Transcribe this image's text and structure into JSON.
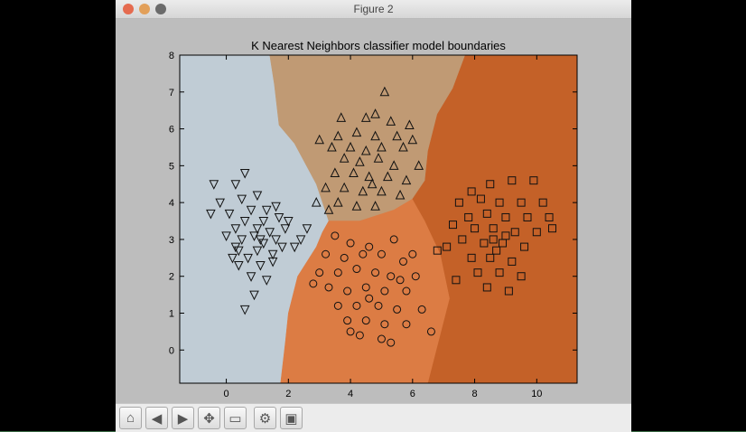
{
  "window": {
    "title": "Figure 2"
  },
  "colors": {
    "region_class0": "#c0ccd5",
    "region_class1": "#c09a74",
    "region_class2": "#dc7c44",
    "region_class3": "#c46128",
    "figure_bg": "#bdbdbd",
    "marker_stroke": "#111111"
  },
  "toolbar": {
    "buttons": [
      {
        "name": "home-button",
        "icon": "home-icon"
      },
      {
        "name": "back-button",
        "icon": "back-arrow-icon"
      },
      {
        "name": "forward-button",
        "icon": "forward-arrow-icon"
      },
      {
        "name": "pan-button",
        "icon": "move-arrows-icon"
      },
      {
        "name": "zoom-button",
        "icon": "zoom-rect-icon"
      },
      {
        "name": "subplots-button",
        "icon": "subplots-config-icon"
      },
      {
        "name": "save-button",
        "icon": "save-disk-icon"
      }
    ]
  },
  "chart_data": {
    "type": "scatter",
    "title": "K Nearest Neighbors classifier model boundaries",
    "xlabel": "",
    "ylabel": "",
    "xlim": [
      -1.5,
      11.3
    ],
    "ylim": [
      -0.9,
      8.0
    ],
    "xticks": [
      "0",
      "2",
      "4",
      "6",
      "8",
      "10"
    ],
    "xtick_values": [
      0,
      2,
      4,
      6,
      8,
      10
    ],
    "yticks": [
      "0",
      "1",
      "2",
      "3",
      "4",
      "5",
      "6",
      "7",
      "8"
    ],
    "ytick_values": [
      0,
      1,
      2,
      3,
      4,
      5,
      6,
      7,
      8
    ],
    "grid": false,
    "legend": false,
    "regions": [
      {
        "class": 0,
        "polygon": [
          [
            -1.5,
            8.0
          ],
          [
            1.4,
            8.0
          ],
          [
            1.55,
            7.2
          ],
          [
            1.7,
            6.1
          ],
          [
            2.2,
            5.6
          ],
          [
            2.9,
            4.5
          ],
          [
            3.3,
            3.5
          ],
          [
            3.1,
            3.2
          ],
          [
            2.9,
            2.8
          ],
          [
            2.3,
            2.0
          ],
          [
            2.0,
            1.0
          ],
          [
            1.9,
            0.2
          ],
          [
            1.75,
            -0.9
          ],
          [
            -1.5,
            -0.9
          ]
        ]
      },
      {
        "class": 1,
        "polygon": [
          [
            1.4,
            8.0
          ],
          [
            7.7,
            8.0
          ],
          [
            7.3,
            7.1
          ],
          [
            6.8,
            6.4
          ],
          [
            6.5,
            5.4
          ],
          [
            6.4,
            4.6
          ],
          [
            6.0,
            4.1
          ],
          [
            5.4,
            3.8
          ],
          [
            4.3,
            3.5
          ],
          [
            3.3,
            3.5
          ],
          [
            2.9,
            4.5
          ],
          [
            2.2,
            5.6
          ],
          [
            1.7,
            6.1
          ],
          [
            1.55,
            7.2
          ]
        ]
      },
      {
        "class": 2,
        "polygon": [
          [
            3.3,
            3.5
          ],
          [
            4.3,
            3.5
          ],
          [
            5.4,
            3.8
          ],
          [
            6.0,
            4.1
          ],
          [
            6.4,
            3.5
          ],
          [
            6.9,
            2.6
          ],
          [
            7.2,
            1.4
          ],
          [
            6.5,
            -0.9
          ],
          [
            1.75,
            -0.9
          ],
          [
            1.9,
            0.2
          ],
          [
            2.0,
            1.0
          ],
          [
            2.3,
            2.0
          ],
          [
            2.9,
            2.8
          ],
          [
            3.1,
            3.2
          ]
        ]
      },
      {
        "class": 3,
        "polygon": [
          [
            7.7,
            8.0
          ],
          [
            11.3,
            8.0
          ],
          [
            11.3,
            -0.9
          ],
          [
            6.5,
            -0.9
          ],
          [
            7.2,
            1.4
          ],
          [
            6.9,
            2.6
          ],
          [
            6.4,
            3.5
          ],
          [
            6.0,
            4.1
          ],
          [
            6.4,
            4.6
          ],
          [
            6.5,
            5.4
          ],
          [
            6.8,
            6.4
          ],
          [
            7.3,
            7.1
          ]
        ]
      }
    ],
    "series": [
      {
        "marker": "triangle-down",
        "points": [
          [
            0.6,
            1.1
          ],
          [
            0.9,
            1.5
          ],
          [
            1.3,
            1.9
          ],
          [
            0.8,
            2.0
          ],
          [
            0.4,
            2.3
          ],
          [
            1.1,
            2.3
          ],
          [
            0.2,
            2.5
          ],
          [
            0.7,
            2.5
          ],
          [
            1.5,
            2.4
          ],
          [
            1.0,
            2.7
          ],
          [
            0.3,
            2.8
          ],
          [
            1.8,
            2.8
          ],
          [
            2.2,
            2.8
          ],
          [
            0.5,
            3.0
          ],
          [
            1.2,
            2.9
          ],
          [
            1.6,
            3.0
          ],
          [
            0.0,
            3.1
          ],
          [
            0.9,
            3.1
          ],
          [
            2.4,
            3.0
          ],
          [
            0.3,
            3.3
          ],
          [
            1.0,
            3.3
          ],
          [
            1.4,
            3.2
          ],
          [
            1.9,
            3.3
          ],
          [
            2.6,
            3.3
          ],
          [
            0.6,
            3.5
          ],
          [
            1.2,
            3.5
          ],
          [
            1.7,
            3.6
          ],
          [
            0.1,
            3.7
          ],
          [
            0.8,
            3.8
          ],
          [
            1.3,
            3.8
          ],
          [
            -0.5,
            3.7
          ],
          [
            -0.2,
            4.0
          ],
          [
            0.5,
            4.1
          ],
          [
            1.0,
            4.2
          ],
          [
            0.3,
            4.5
          ],
          [
            -0.4,
            4.5
          ],
          [
            0.6,
            4.8
          ],
          [
            1.6,
            3.9
          ],
          [
            2.0,
            3.5
          ],
          [
            1.1,
            3.0
          ],
          [
            0.4,
            2.7
          ],
          [
            1.5,
            2.6
          ]
        ]
      },
      {
        "marker": "triangle-up",
        "points": [
          [
            5.1,
            7.0
          ],
          [
            4.5,
            6.3
          ],
          [
            3.7,
            6.3
          ],
          [
            4.8,
            6.4
          ],
          [
            5.3,
            6.2
          ],
          [
            5.9,
            6.1
          ],
          [
            3.0,
            5.7
          ],
          [
            3.6,
            5.8
          ],
          [
            4.2,
            5.9
          ],
          [
            4.8,
            5.8
          ],
          [
            5.5,
            5.8
          ],
          [
            6.0,
            5.7
          ],
          [
            3.4,
            5.5
          ],
          [
            4.0,
            5.5
          ],
          [
            4.5,
            5.4
          ],
          [
            5.0,
            5.5
          ],
          [
            5.7,
            5.5
          ],
          [
            3.8,
            5.2
          ],
          [
            4.3,
            5.1
          ],
          [
            4.9,
            5.2
          ],
          [
            5.4,
            5.0
          ],
          [
            6.2,
            5.0
          ],
          [
            3.5,
            4.8
          ],
          [
            4.1,
            4.8
          ],
          [
            4.6,
            4.7
          ],
          [
            5.2,
            4.7
          ],
          [
            5.8,
            4.6
          ],
          [
            3.2,
            4.4
          ],
          [
            3.8,
            4.4
          ],
          [
            4.4,
            4.3
          ],
          [
            5.0,
            4.3
          ],
          [
            5.6,
            4.2
          ],
          [
            2.9,
            4.0
          ],
          [
            3.6,
            4.0
          ],
          [
            4.2,
            3.9
          ],
          [
            4.8,
            3.9
          ],
          [
            3.3,
            3.8
          ],
          [
            4.7,
            4.5
          ]
        ]
      },
      {
        "marker": "circle",
        "points": [
          [
            3.5,
            3.1
          ],
          [
            4.0,
            2.9
          ],
          [
            4.6,
            2.8
          ],
          [
            5.4,
            3.0
          ],
          [
            3.2,
            2.6
          ],
          [
            3.8,
            2.5
          ],
          [
            4.4,
            2.6
          ],
          [
            5.0,
            2.6
          ],
          [
            5.7,
            2.4
          ],
          [
            3.0,
            2.1
          ],
          [
            3.6,
            2.1
          ],
          [
            4.2,
            2.2
          ],
          [
            4.8,
            2.1
          ],
          [
            5.3,
            2.0
          ],
          [
            6.1,
            2.0
          ],
          [
            3.3,
            1.7
          ],
          [
            3.9,
            1.6
          ],
          [
            4.5,
            1.7
          ],
          [
            5.1,
            1.6
          ],
          [
            5.8,
            1.6
          ],
          [
            3.6,
            1.2
          ],
          [
            4.2,
            1.2
          ],
          [
            4.9,
            1.2
          ],
          [
            5.5,
            1.1
          ],
          [
            6.3,
            1.1
          ],
          [
            3.9,
            0.8
          ],
          [
            4.5,
            0.8
          ],
          [
            5.1,
            0.7
          ],
          [
            5.8,
            0.7
          ],
          [
            4.3,
            0.4
          ],
          [
            5.0,
            0.3
          ],
          [
            5.3,
            0.2
          ],
          [
            6.6,
            0.5
          ],
          [
            2.8,
            1.8
          ],
          [
            4.6,
            1.4
          ],
          [
            5.6,
            1.9
          ],
          [
            4.0,
            0.5
          ],
          [
            6.0,
            2.6
          ]
        ]
      },
      {
        "marker": "square",
        "points": [
          [
            7.9,
            4.3
          ],
          [
            8.5,
            4.5
          ],
          [
            9.2,
            4.6
          ],
          [
            9.9,
            4.6
          ],
          [
            7.5,
            4.0
          ],
          [
            8.2,
            4.1
          ],
          [
            8.8,
            4.0
          ],
          [
            9.5,
            4.0
          ],
          [
            10.2,
            4.0
          ],
          [
            7.8,
            3.6
          ],
          [
            8.4,
            3.7
          ],
          [
            9.0,
            3.6
          ],
          [
            9.7,
            3.6
          ],
          [
            10.5,
            3.3
          ],
          [
            7.3,
            3.4
          ],
          [
            8.0,
            3.3
          ],
          [
            8.6,
            3.3
          ],
          [
            9.3,
            3.2
          ],
          [
            10.0,
            3.2
          ],
          [
            7.6,
            3.0
          ],
          [
            8.3,
            2.9
          ],
          [
            8.9,
            2.9
          ],
          [
            9.6,
            2.8
          ],
          [
            7.1,
            2.8
          ],
          [
            7.9,
            2.5
          ],
          [
            8.5,
            2.5
          ],
          [
            9.2,
            2.4
          ],
          [
            8.1,
            2.1
          ],
          [
            8.8,
            2.1
          ],
          [
            9.5,
            2.0
          ],
          [
            8.4,
            1.7
          ],
          [
            9.1,
            1.6
          ],
          [
            7.4,
            1.9
          ],
          [
            8.6,
            3.0
          ],
          [
            8.7,
            2.7
          ],
          [
            9.0,
            3.1
          ],
          [
            6.8,
            2.7
          ],
          [
            10.4,
            3.6
          ]
        ]
      }
    ]
  }
}
